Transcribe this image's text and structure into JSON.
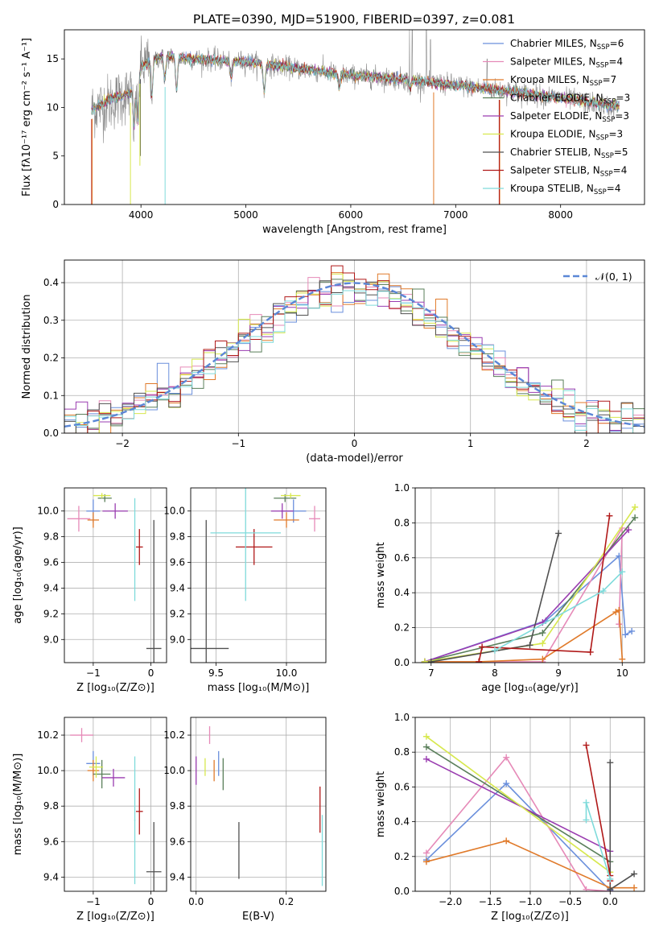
{
  "title": "PLATE=0390, MJD=51900, FIBERID=0397, z=0.081",
  "colors": {
    "chabrier_miles": "#6a8fdc",
    "salpeter_miles": "#e68ab8",
    "kroupa_miles": "#e07a2a",
    "chabrier_elodie": "#5a7f5a",
    "salpeter_elodie": "#9a3cb0",
    "kroupa_elodie": "#d7e84e",
    "chabrier_stelib": "#505050",
    "salpeter_stelib": "#b01818",
    "kroupa_stelib": "#7fdbdb",
    "normal_curve": "#5b87d6"
  },
  "chart_data": [
    {
      "id": "spectrum",
      "type": "line",
      "xlabel": "wavelength [Angstrom, rest frame]",
      "ylabel": "Flux [fλ10⁻¹⁷ erg cm⁻² s⁻¹ A⁻¹]",
      "xlim": [
        3270,
        8800
      ],
      "ylim": [
        0,
        18
      ],
      "xticks": [
        "4000",
        "5000",
        "6000",
        "7000",
        "8000"
      ],
      "yticks": [
        "0",
        "5",
        "10",
        "15"
      ],
      "legend_position": "top-right",
      "legend": [
        {
          "name": "Chabrier MILES, N",
          "sub": "SSP",
          "n": "=6",
          "key": "chabrier_miles"
        },
        {
          "name": "Salpeter MILES, N",
          "sub": "SSP",
          "n": "=4",
          "key": "salpeter_miles"
        },
        {
          "name": "Kroupa MILES, N",
          "sub": "SSP",
          "n": "=7",
          "key": "kroupa_miles"
        },
        {
          "name": "Chabrier ELODIE, N",
          "sub": "SSP",
          "n": "=3",
          "key": "chabrier_elodie"
        },
        {
          "name": "Salpeter ELODIE, N",
          "sub": "SSP",
          "n": "=3",
          "key": "salpeter_elodie"
        },
        {
          "name": "Kroupa ELODIE, N",
          "sub": "SSP",
          "n": "=3",
          "key": "kroupa_elodie"
        },
        {
          "name": "Chabrier STELIB, N",
          "sub": "SSP",
          "n": "=5",
          "key": "chabrier_stelib"
        },
        {
          "name": "Salpeter STELIB, N",
          "sub": "SSP",
          "n": "=4",
          "key": "salpeter_stelib"
        },
        {
          "name": "Kroupa STELIB, N",
          "sub": "SSP",
          "n": "=4",
          "key": "kroupa_stelib"
        }
      ],
      "continuum": [
        [
          3530,
          9.8
        ],
        [
          3700,
          10.8
        ],
        [
          3900,
          11.5
        ],
        [
          4000,
          14.2
        ],
        [
          4200,
          15.3
        ],
        [
          4500,
          15.0
        ],
        [
          5000,
          14.7
        ],
        [
          5500,
          14.0
        ],
        [
          6000,
          13.3
        ],
        [
          6500,
          12.9
        ],
        [
          7000,
          12.3
        ],
        [
          7400,
          11.8
        ],
        [
          8000,
          11.0
        ],
        [
          8500,
          10.2
        ]
      ],
      "observed_continuum": [
        [
          3530,
          9.8
        ],
        [
          3700,
          10.5
        ],
        [
          3900,
          11.5
        ],
        [
          4000,
          14.2
        ],
        [
          4200,
          15.3
        ],
        [
          4500,
          15.0
        ],
        [
          5000,
          14.7
        ],
        [
          5500,
          14.0
        ],
        [
          6000,
          13.3
        ],
        [
          6500,
          12.9
        ],
        [
          7000,
          12.3
        ],
        [
          7400,
          11.8
        ],
        [
          8000,
          11.0
        ],
        [
          8560,
          9.9
        ]
      ],
      "absorption_dips": [
        [
          3934,
          8.0
        ],
        [
          3968,
          8.5
        ],
        [
          4102,
          11.0
        ],
        [
          4227,
          13.0
        ],
        [
          4340,
          12.0
        ],
        [
          4861,
          13.0
        ],
        [
          5175,
          11.5
        ],
        [
          5890,
          12.0
        ],
        [
          6563,
          12.0
        ]
      ],
      "emission_spikes": [
        [
          6560,
          18.0
        ],
        [
          6585,
          18.0
        ],
        [
          6720,
          18.0
        ],
        [
          6760,
          17.0
        ],
        [
          7300,
          15.0
        ]
      ],
      "model_drops": [
        {
          "key": "salpeter_stelib",
          "x": 3530,
          "ybottom": 0
        },
        {
          "key": "kroupa_miles",
          "x": 3535,
          "ybottom": 0
        },
        {
          "key": "kroupa_elodie",
          "x": 3900,
          "ybottom": 0
        },
        {
          "key": "chabrier_stelib",
          "x": 3995,
          "ybottom": 5.0
        },
        {
          "key": "kroupa_elodie",
          "x": 3990,
          "ybottom": 4.0
        },
        {
          "key": "kroupa_stelib",
          "x": 4230,
          "ybottom": 0
        },
        {
          "key": "kroupa_miles",
          "x": 6790,
          "ybottom": 0
        },
        {
          "key": "kroupa_miles",
          "x": 7420,
          "ybottom": 0
        },
        {
          "key": "salpeter_stelib",
          "x": 7415,
          "ybottom": 0
        }
      ]
    },
    {
      "id": "residuals",
      "type": "histogram",
      "xlabel": "(data-model)/error",
      "ylabel": "Normed distribution",
      "xlim": [
        -2.5,
        2.5
      ],
      "ylim": [
        0,
        0.46
      ],
      "xticks": [
        "−2",
        "−1",
        "0",
        "1",
        "2"
      ],
      "yticks": [
        "0.0",
        "0.1",
        "0.2",
        "0.3",
        "0.4"
      ],
      "bins": 50,
      "legend_label": "𝒩(0, 1)",
      "legend_position": "top-right"
    },
    {
      "id": "age_vs_Z",
      "type": "errorbar",
      "xlabel": "Z [log₁₀(Z/Z⊙)]",
      "ylabel": "age  [log₁₀(age/yr)]",
      "xlim": [
        -1.5,
        0.27
      ],
      "ylim": [
        8.82,
        10.18
      ],
      "xticks": [
        "−1",
        "0"
      ],
      "yticks": [
        "9.0",
        "9.2",
        "9.4",
        "9.6",
        "9.8",
        "10.0"
      ],
      "points": [
        {
          "key": "chabrier_miles",
          "x": -1.0,
          "y": 10.0,
          "xerr": 0.12,
          "yerr": 0.09
        },
        {
          "key": "salpeter_miles",
          "x": -1.25,
          "y": 9.94,
          "xerr": 0.2,
          "yerr": 0.1
        },
        {
          "key": "kroupa_miles",
          "x": -1.0,
          "y": 9.93,
          "xerr": 0.1,
          "yerr": 0.06
        },
        {
          "key": "chabrier_elodie",
          "x": -0.8,
          "y": 10.1,
          "xerr": 0.12,
          "yerr": 0.03
        },
        {
          "key": "salpeter_elodie",
          "x": -0.62,
          "y": 10.0,
          "xerr": 0.22,
          "yerr": 0.06
        },
        {
          "key": "kroupa_elodie",
          "x": -0.85,
          "y": 10.12,
          "xerr": 0.15,
          "yerr": 0.02
        },
        {
          "key": "chabrier_stelib",
          "x": 0.05,
          "y": 8.93,
          "xerr": 0.13,
          "yerr": 1.0
        },
        {
          "key": "salpeter_stelib",
          "x": -0.2,
          "y": 9.72,
          "xerr": 0.06,
          "yerr": 0.14
        },
        {
          "key": "kroupa_stelib",
          "x": -0.28,
          "y": 9.7,
          "xerr": 0.01,
          "yerr": 0.4
        }
      ]
    },
    {
      "id": "age_vs_mass",
      "type": "errorbar",
      "xlabel": "mass [log₁₀(M/M⊙)]",
      "ylabel": "",
      "xlim": [
        9.32,
        10.28
      ],
      "ylim": [
        8.82,
        10.18
      ],
      "xticks": [
        "9.5",
        "10.0"
      ],
      "yticks": [
        "9.0",
        "9.2",
        "9.4",
        "9.6",
        "9.8",
        "10.0"
      ],
      "points": [
        {
          "key": "chabrier_miles",
          "x": 10.05,
          "y": 10.0,
          "xerr": 0.09,
          "yerr": 0.09
        },
        {
          "key": "salpeter_miles",
          "x": 10.2,
          "y": 9.94,
          "xerr": 0.04,
          "yerr": 0.1
        },
        {
          "key": "kroupa_miles",
          "x": 10.0,
          "y": 9.93,
          "xerr": 0.09,
          "yerr": 0.06
        },
        {
          "key": "chabrier_elodie",
          "x": 9.99,
          "y": 10.1,
          "xerr": 0.08,
          "yerr": 0.03
        },
        {
          "key": "salpeter_elodie",
          "x": 9.97,
          "y": 10.0,
          "xerr": 0.08,
          "yerr": 0.06
        },
        {
          "key": "kroupa_elodie",
          "x": 10.03,
          "y": 10.12,
          "xerr": 0.07,
          "yerr": 0.02
        },
        {
          "key": "chabrier_stelib",
          "x": 9.43,
          "y": 8.93,
          "xerr": 0.16,
          "yerr": 1.0
        },
        {
          "key": "salpeter_stelib",
          "x": 9.77,
          "y": 9.72,
          "xerr": 0.13,
          "yerr": 0.14
        },
        {
          "key": "kroupa_stelib",
          "x": 9.71,
          "y": 9.83,
          "xerr": 0.25,
          "yerr": 0.53
        }
      ]
    },
    {
      "id": "weight_vs_age",
      "type": "line",
      "xlabel": "age  [log₁₀(age/yr)]",
      "ylabel": "mass weight",
      "xlim": [
        6.75,
        10.35
      ],
      "ylim": [
        0,
        1.0
      ],
      "xticks": [
        "7",
        "8",
        "9",
        "10"
      ],
      "yticks": [
        "0.0",
        "0.2",
        "0.4",
        "0.6",
        "0.8",
        "1.0"
      ],
      "series": [
        {
          "key": "chabrier_miles",
          "x": [
            6.9,
            8.8,
            9.95,
            10.05,
            10.15
          ],
          "y": [
            0.005,
            0.24,
            0.61,
            0.16,
            0.18
          ]
        },
        {
          "key": "salpeter_miles",
          "x": [
            6.9,
            8.75,
            10.0,
            9.95
          ],
          "y": [
            0.005,
            0.005,
            0.77,
            0.22
          ]
        },
        {
          "key": "kroupa_miles",
          "x": [
            6.9,
            7.75,
            8.75,
            9.9,
            9.95,
            10.0
          ],
          "y": [
            0.005,
            0.005,
            0.02,
            0.29,
            0.3,
            0.02
          ]
        },
        {
          "key": "chabrier_elodie",
          "x": [
            6.9,
            8.75,
            10.2
          ],
          "y": [
            0.005,
            0.17,
            0.83
          ]
        },
        {
          "key": "salpeter_elodie",
          "x": [
            6.9,
            8.75,
            10.1
          ],
          "y": [
            0.005,
            0.23,
            0.76
          ]
        },
        {
          "key": "kroupa_elodie",
          "x": [
            6.9,
            8.75,
            10.2
          ],
          "y": [
            0.005,
            0.11,
            0.89
          ]
        },
        {
          "key": "chabrier_stelib",
          "x": [
            7.0,
            8.55,
            9.0
          ],
          "y": [
            0.005,
            0.1,
            0.74
          ]
        },
        {
          "key": "salpeter_stelib",
          "x": [
            7.75,
            7.8,
            9.5,
            9.8
          ],
          "y": [
            0.005,
            0.09,
            0.06,
            0.84
          ]
        },
        {
          "key": "kroupa_stelib",
          "x": [
            8.0,
            9.7,
            10.0
          ],
          "y": [
            0.07,
            0.41,
            0.52
          ]
        }
      ]
    },
    {
      "id": "mass_vs_Z",
      "type": "errorbar",
      "xlabel": "Z [log₁₀(Z/Z⊙)]",
      "ylabel": "mass [log₁₀(M/M⊙)]",
      "xlim": [
        -1.5,
        0.27
      ],
      "ylim": [
        9.32,
        10.3
      ],
      "xticks": [
        "−1",
        "0"
      ],
      "yticks": [
        "9.4",
        "9.6",
        "9.8",
        "10.0",
        "10.2"
      ],
      "points": [
        {
          "key": "chabrier_miles",
          "x": -1.0,
          "y": 10.04,
          "xerr": 0.12,
          "yerr": 0.07
        },
        {
          "key": "salpeter_miles",
          "x": -1.2,
          "y": 10.2,
          "xerr": 0.2,
          "yerr": 0.04
        },
        {
          "key": "kroupa_miles",
          "x": -1.0,
          "y": 10.0,
          "xerr": 0.1,
          "yerr": 0.06
        },
        {
          "key": "chabrier_elodie",
          "x": -0.85,
          "y": 9.98,
          "xerr": 0.15,
          "yerr": 0.08
        },
        {
          "key": "salpeter_elodie",
          "x": -0.65,
          "y": 9.96,
          "xerr": 0.2,
          "yerr": 0.05
        },
        {
          "key": "kroupa_elodie",
          "x": -0.95,
          "y": 10.02,
          "xerr": 0.12,
          "yerr": 0.06
        },
        {
          "key": "chabrier_stelib",
          "x": 0.05,
          "y": 9.43,
          "xerr": 0.13,
          "yerr": 0.28
        },
        {
          "key": "salpeter_stelib",
          "x": -0.2,
          "y": 9.77,
          "xerr": 0.06,
          "yerr": 0.13
        },
        {
          "key": "kroupa_stelib",
          "x": -0.28,
          "y": 9.72,
          "xerr": 0.01,
          "yerr": 0.36
        }
      ]
    },
    {
      "id": "mass_vs_ebv",
      "type": "errorbar",
      "xlabel": "E(B-V)",
      "ylabel": "",
      "xlim": [
        -0.012,
        0.288
      ],
      "ylim": [
        9.32,
        10.3
      ],
      "xticks": [
        "0.0",
        "0.2"
      ],
      "yticks": [
        "9.4",
        "9.6",
        "9.8",
        "10.0",
        "10.2"
      ],
      "points": [
        {
          "key": "chabrier_miles",
          "x": 0.05,
          "y": 10.04,
          "xerr": 0,
          "yerr": 0.07
        },
        {
          "key": "salpeter_miles",
          "x": 0.03,
          "y": 10.2,
          "xerr": 0,
          "yerr": 0.05
        },
        {
          "key": "kroupa_miles",
          "x": 0.04,
          "y": 10.0,
          "xerr": 0,
          "yerr": 0.06
        },
        {
          "key": "chabrier_elodie",
          "x": 0.06,
          "y": 9.98,
          "xerr": 0,
          "yerr": 0.09
        },
        {
          "key": "salpeter_elodie",
          "x": 0.0,
          "y": 10.0,
          "xerr": 0,
          "yerr": 0.08
        },
        {
          "key": "kroupa_elodie",
          "x": 0.02,
          "y": 10.02,
          "xerr": 0,
          "yerr": 0.05
        },
        {
          "key": "chabrier_stelib",
          "x": 0.095,
          "y": 9.55,
          "xerr": 0,
          "yerr": 0.16
        },
        {
          "key": "salpeter_stelib",
          "x": 0.275,
          "y": 9.78,
          "xerr": 0,
          "yerr": 0.13
        },
        {
          "key": "kroupa_stelib",
          "x": 0.28,
          "y": 9.55,
          "xerr": 0,
          "yerr": 0.2
        }
      ]
    },
    {
      "id": "weight_vs_Z",
      "type": "line",
      "xlabel": "Z [log₁₀(Z/Z⊙)]",
      "ylabel": "mass weight",
      "xlim": [
        -2.44,
        0.43
      ],
      "ylim": [
        0,
        1.0
      ],
      "xticks": [
        "−2.0",
        "−1.5",
        "−1.0",
        "−0.5",
        "0.0"
      ],
      "yticks": [
        "0.0",
        "0.2",
        "0.4",
        "0.6",
        "0.8",
        "1.0"
      ],
      "series": [
        {
          "key": "chabrier_miles",
          "x": [
            -2.3,
            -1.3,
            0.0,
            0.0
          ],
          "y": [
            0.18,
            0.62,
            0.005,
            0.02
          ]
        },
        {
          "key": "salpeter_miles",
          "x": [
            -2.3,
            -1.3,
            -0.3,
            0.0
          ],
          "y": [
            0.22,
            0.77,
            0.01,
            0.0
          ]
        },
        {
          "key": "kroupa_miles",
          "x": [
            -2.3,
            -1.3,
            0.0,
            0.3
          ],
          "y": [
            0.17,
            0.29,
            0.02,
            0.02
          ]
        },
        {
          "key": "chabrier_elodie",
          "x": [
            -2.3,
            0.0
          ],
          "y": [
            0.83,
            0.17
          ]
        },
        {
          "key": "salpeter_elodie",
          "x": [
            -2.3,
            0.0
          ],
          "y": [
            0.76,
            0.23
          ]
        },
        {
          "key": "kroupa_elodie",
          "x": [
            -2.3,
            0.0
          ],
          "y": [
            0.89,
            0.11
          ]
        },
        {
          "key": "chabrier_stelib",
          "x": [
            0.0,
            0.0,
            0.3
          ],
          "y": [
            0.74,
            0.01,
            0.1
          ]
        },
        {
          "key": "salpeter_stelib",
          "x": [
            -0.3,
            0.0,
            0.0
          ],
          "y": [
            0.84,
            0.09,
            0.06
          ]
        },
        {
          "key": "kroupa_stelib",
          "x": [
            -0.3,
            -0.3,
            0.0
          ],
          "y": [
            0.41,
            0.51,
            0.07
          ]
        }
      ]
    }
  ]
}
